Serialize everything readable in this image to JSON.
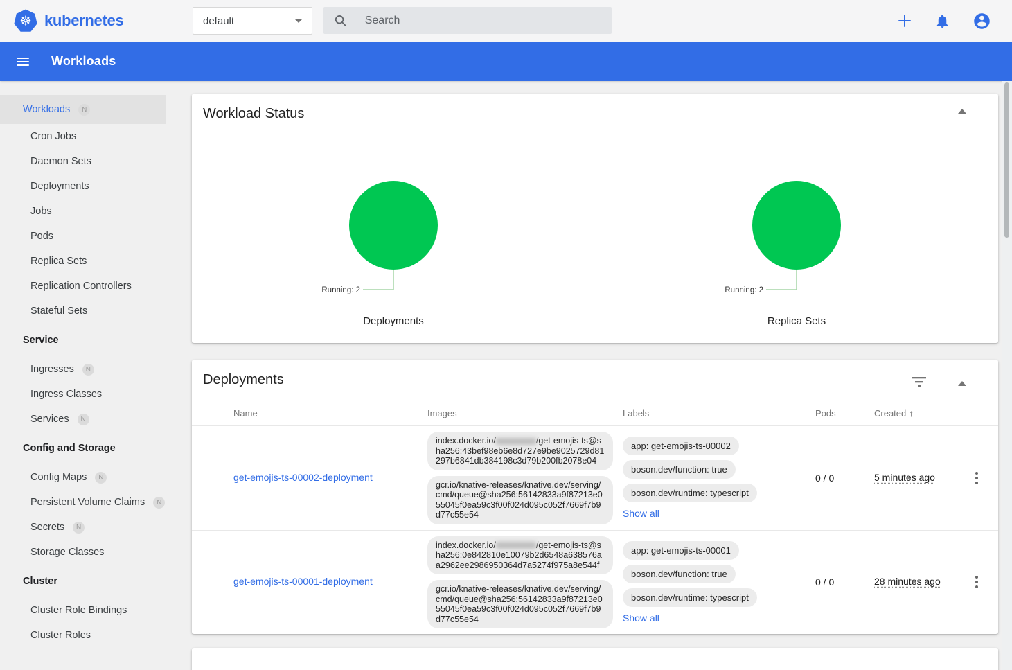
{
  "topbar": {
    "logo": {
      "text": "kubernetes"
    },
    "namespace": {
      "value": "default"
    },
    "search": {
      "placeholder": "Search"
    }
  },
  "appbar": {
    "title": "Workloads"
  },
  "sidebar": {
    "items": [
      {
        "kind": "root",
        "label": "Workloads",
        "badge": "N",
        "active": true
      },
      {
        "kind": "child",
        "label": "Cron Jobs"
      },
      {
        "kind": "child",
        "label": "Daemon Sets"
      },
      {
        "kind": "child",
        "label": "Deployments"
      },
      {
        "kind": "child",
        "label": "Jobs"
      },
      {
        "kind": "child",
        "label": "Pods"
      },
      {
        "kind": "child",
        "label": "Replica Sets"
      },
      {
        "kind": "child",
        "label": "Replication Controllers"
      },
      {
        "kind": "child",
        "label": "Stateful Sets"
      },
      {
        "kind": "section",
        "label": "Service"
      },
      {
        "kind": "child",
        "label": "Ingresses",
        "badge": "N"
      },
      {
        "kind": "child",
        "label": "Ingress Classes"
      },
      {
        "kind": "child",
        "label": "Services",
        "badge": "N"
      },
      {
        "kind": "section",
        "label": "Config and Storage"
      },
      {
        "kind": "child",
        "label": "Config Maps",
        "badge": "N"
      },
      {
        "kind": "child",
        "label": "Persistent Volume Claims",
        "badge": "N"
      },
      {
        "kind": "child",
        "label": "Secrets",
        "badge": "N"
      },
      {
        "kind": "child",
        "label": "Storage Classes"
      },
      {
        "kind": "section",
        "label": "Cluster"
      },
      {
        "kind": "child",
        "label": "Cluster Role Bindings"
      },
      {
        "kind": "child",
        "label": "Cluster Roles"
      }
    ]
  },
  "workload_status": {
    "title": "Workload Status"
  },
  "chart_data": [
    {
      "type": "pie",
      "title": "Deployments",
      "slices": [
        {
          "label": "Running",
          "value": 2,
          "color": "#00c752"
        }
      ],
      "annotation": "Running: 2",
      "legend_position": "bottom-callout"
    },
    {
      "type": "pie",
      "title": "Replica Sets",
      "slices": [
        {
          "label": "Running",
          "value": 2,
          "color": "#00c752"
        }
      ],
      "annotation": "Running: 2",
      "legend_position": "bottom-callout"
    }
  ],
  "deployments": {
    "title": "Deployments",
    "columns": [
      "Name",
      "Images",
      "Labels",
      "Pods",
      "Created"
    ],
    "sort": {
      "column": "Created",
      "direction": "asc",
      "arrow": "↑"
    },
    "rows": [
      {
        "status": "Running",
        "name": "get-emojis-ts-00002-deployment",
        "images": [
          {
            "prefix": "index.docker.io/",
            "redacted": true,
            "suffix": "/get-emojis-ts@sha256:43bef98eb6e8d727e9be9025729d81297b6841db384198c3d79b200fb2078e04"
          },
          {
            "text": "gcr.io/knative-releases/knative.dev/serving/cmd/queue@sha256:56142833a9f87213e055045f0ea59c3f00f024d095c052f7669f7b9d77c55e54"
          }
        ],
        "labels": [
          "app: get-emojis-ts-00002",
          "boson.dev/function: true",
          "boson.dev/runtime: typescript"
        ],
        "show_all": "Show all",
        "pods": "0 / 0",
        "created": "5 minutes ago"
      },
      {
        "status": "Running",
        "name": "get-emojis-ts-00001-deployment",
        "images": [
          {
            "prefix": "index.docker.io/",
            "redacted": true,
            "suffix": "/get-emojis-ts@sha256:0e842810e10079b2d6548a638576aa2962ee2986950364d7a5274f975a8e544f"
          },
          {
            "text": "gcr.io/knative-releases/knative.dev/serving/cmd/queue@sha256:56142833a9f87213e055045f0ea59c3f00f024d095c052f7669f7b9d77c55e54"
          }
        ],
        "labels": [
          "app: get-emojis-ts-00001",
          "boson.dev/function: true",
          "boson.dev/runtime: typescript"
        ],
        "show_all": "Show all",
        "pods": "0 / 0",
        "created": "28 minutes ago"
      }
    ]
  },
  "colors": {
    "brand_blue": "#326de6",
    "running_green": "#00c752",
    "status_dot_green": "#1e8223",
    "callout_line": "#a5d6a7"
  }
}
